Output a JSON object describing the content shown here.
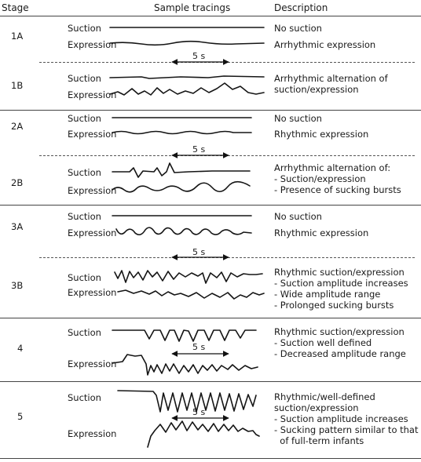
{
  "header": {
    "stage": "Stage",
    "tracings": "Sample tracings",
    "description": "Description"
  },
  "labels": {
    "suction": "Suction",
    "expression": "Expression"
  },
  "scale_label": "5 s",
  "stages": [
    {
      "id": "1A",
      "description": [
        "No suction",
        "Arrhythmic expression"
      ]
    },
    {
      "id": "1B",
      "description": [
        "Arrhythmic alternation of",
        "suction/expression"
      ]
    },
    {
      "id": "2A",
      "description": [
        "No suction",
        "Rhythmic expression"
      ]
    },
    {
      "id": "2B",
      "description": [
        "Arrhythmic alternation of:",
        "- Suction/expression",
        "- Presence of sucking bursts"
      ]
    },
    {
      "id": "3A",
      "description": [
        "No suction",
        "Rhythmic expression"
      ]
    },
    {
      "id": "3B",
      "description": [
        "Rhythmic suction/expression",
        "- Suction amplitude increases",
        "- Wide amplitude range",
        "- Prolonged sucking bursts"
      ]
    },
    {
      "id": "4",
      "description": [
        "Rhythmic suction/expression",
        "- Suction well defined",
        "- Decreased amplitude range"
      ]
    },
    {
      "id": "5",
      "description": [
        "Rhythmic/well-defined",
        "suction/expression",
        "- Suction amplitude increases",
        "- Sucking pattern similar to that",
        "  of full-term infants"
      ]
    }
  ]
}
